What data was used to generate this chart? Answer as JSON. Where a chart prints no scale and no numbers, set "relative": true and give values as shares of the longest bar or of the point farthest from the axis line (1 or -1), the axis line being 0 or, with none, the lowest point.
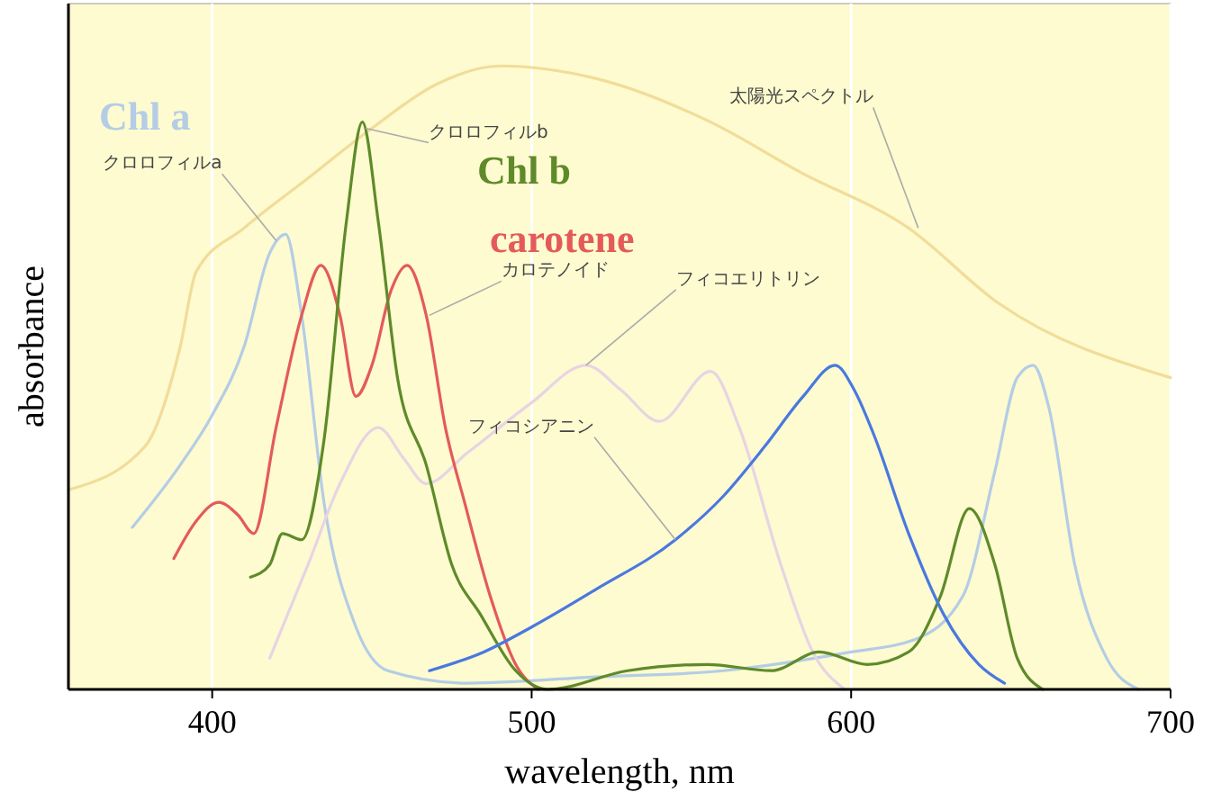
{
  "chart_data": {
    "type": "line",
    "xlabel": "wavelength, nm",
    "ylabel": "absorbance",
    "relative": true,
    "xlim": [
      355,
      700
    ],
    "xticks": [
      400,
      500,
      600,
      700
    ],
    "grid": "x",
    "series": [
      {
        "color": "#f2dc9a",
        "x": [
          355,
          379,
          390,
          395,
          410,
          430,
          450,
          470,
          490,
          520,
          556,
          584,
          618,
          646,
          700
        ],
        "values": [
          0.32,
          0.39,
          0.55,
          0.67,
          0.74,
          0.82,
          0.9,
          0.97,
          1.0,
          0.98,
          0.91,
          0.83,
          0.74,
          0.62,
          0.5
        ]
      },
      {
        "name": "Chl a",
        "color": "#b4cce6",
        "x": [
          375,
          390,
          400,
          410,
          418,
          423,
          428,
          435,
          445,
          455,
          480,
          520,
          560,
          600,
          620,
          635,
          645,
          652,
          657,
          662,
          670,
          680,
          690
        ],
        "values": [
          0.26,
          0.36,
          0.44,
          0.55,
          0.7,
          0.73,
          0.6,
          0.3,
          0.1,
          0.03,
          0.01,
          0.02,
          0.03,
          0.06,
          0.08,
          0.15,
          0.35,
          0.5,
          0.52,
          0.45,
          0.2,
          0.05,
          0
        ]
      },
      {
        "color": "#e8d4e4",
        "x": [
          418,
          430,
          440,
          452,
          460,
          467,
          480,
          500,
          517,
          528,
          540,
          556,
          565,
          578,
          588,
          598
        ],
        "values": [
          0.05,
          0.2,
          0.33,
          0.42,
          0.37,
          0.33,
          0.38,
          0.46,
          0.52,
          0.48,
          0.43,
          0.51,
          0.42,
          0.2,
          0.06,
          0
        ]
      },
      {
        "name": "carotene",
        "color": "#e45a5a",
        "x": [
          388,
          395,
          402,
          408,
          413,
          420,
          428,
          434,
          440,
          445,
          450,
          456,
          461,
          467,
          473,
          479,
          487,
          495,
          502
        ],
        "values": [
          0.21,
          0.27,
          0.3,
          0.28,
          0.25,
          0.42,
          0.6,
          0.68,
          0.6,
          0.47,
          0.52,
          0.64,
          0.68,
          0.6,
          0.42,
          0.3,
          0.15,
          0.04,
          0
        ]
      },
      {
        "name": "Chl b",
        "color": "#5f8a2a",
        "x": [
          412,
          418,
          422,
          428,
          435,
          442,
          447,
          452,
          458,
          467,
          475,
          484,
          495,
          505,
          530,
          555,
          575,
          590,
          605,
          618,
          628,
          637,
          645,
          652,
          660
        ],
        "values": [
          0.18,
          0.2,
          0.25,
          0.24,
          0.4,
          0.75,
          0.91,
          0.75,
          0.5,
          0.36,
          0.2,
          0.12,
          0.03,
          0,
          0.03,
          0.04,
          0.03,
          0.06,
          0.04,
          0.06,
          0.15,
          0.29,
          0.2,
          0.05,
          0
        ]
      },
      {
        "color": "#4a78e0",
        "x": [
          468,
          485,
          500,
          520,
          545,
          560,
          573,
          585,
          595,
          601,
          607,
          618,
          629,
          640,
          648
        ],
        "values": [
          0.03,
          0.06,
          0.1,
          0.16,
          0.24,
          0.31,
          0.39,
          0.47,
          0.52,
          0.48,
          0.41,
          0.25,
          0.12,
          0.04,
          0.01
        ]
      }
    ],
    "annotations": [
      {
        "text": "クロロフィルa",
        "x": 420,
        "y": 0.72
      },
      {
        "text": "クロロフィルb",
        "x": 448,
        "y": 0.9
      },
      {
        "text": "カロテノイド",
        "x": 468,
        "y": 0.6
      },
      {
        "text": "フィコエリトリン",
        "x": 517,
        "y": 0.52
      },
      {
        "text": "フィコシアニン",
        "x": 545,
        "y": 0.24
      },
      {
        "text": "太陽光スペクトル",
        "x": 621,
        "y": 0.74
      }
    ]
  }
}
